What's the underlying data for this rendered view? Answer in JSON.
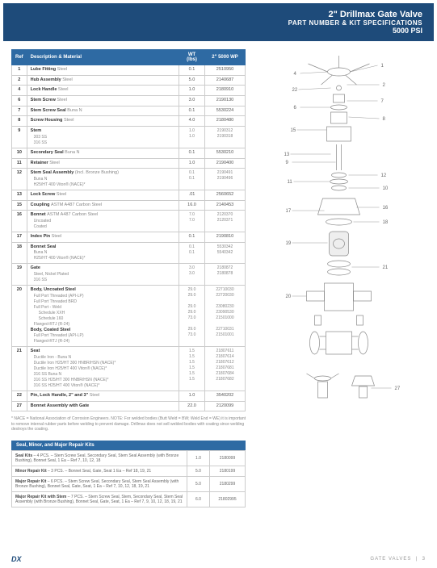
{
  "header": {
    "title": "2\" Drillmax Gate Valve",
    "sub": "PART NUMBER & KIT SPECIFICATIONS",
    "psi": "5000 PSI"
  },
  "columns": {
    "ref": "Ref",
    "desc": "Description & Material",
    "wt": "WT (lbs)",
    "pn": "2\" 5000 WP"
  },
  "rows": [
    {
      "ref": "1",
      "desc": "Lube Fitting",
      "mat": "Steel",
      "wt": "0.1",
      "pn": "2510950"
    },
    {
      "ref": "2",
      "desc": "Hub Assembly",
      "mat": "Steel",
      "wt": "5.0",
      "pn": "2140687"
    },
    {
      "ref": "4",
      "desc": "Lock Handle",
      "mat": "Steel",
      "wt": "1.0",
      "pn": "2180910"
    },
    {
      "ref": "6",
      "desc": "Stem Screw",
      "mat": "Steel",
      "wt": "3.0",
      "pn": "2190130"
    },
    {
      "ref": "7",
      "desc": "Stem Screw Seal",
      "mat": "Buna N",
      "wt": "0.1",
      "pn": "5530224"
    },
    {
      "ref": "8",
      "desc": "Screw Housing",
      "mat": "Steel",
      "wt": "4.0",
      "pn": "2180480"
    },
    {
      "ref": "9",
      "desc": "Stem",
      "mat": "",
      "subs": [
        {
          "t": "303 SS",
          "wt": "1.0",
          "pn": "2190312"
        },
        {
          "t": "316 SS",
          "wt": "1.0",
          "pn": "2190318"
        }
      ]
    },
    {
      "ref": "10",
      "desc": "Secondary Seal",
      "mat": "Buna N",
      "wt": "0.1",
      "pn": "5530210"
    },
    {
      "ref": "11",
      "desc": "Retainer",
      "mat": "Steel",
      "wt": "1.0",
      "pn": "2190400"
    },
    {
      "ref": "12",
      "desc": "Stem Seal Assembly",
      "mat": "(Incl. Bronze Bushing)",
      "subs": [
        {
          "t": "Buna N",
          "wt": "0.1",
          "pn": "2190491"
        },
        {
          "t": "H25/HT 400 Viton® (NACE)*",
          "wt": "0.1",
          "pn": "2190496"
        }
      ]
    },
    {
      "ref": "13",
      "desc": "Lock Screw",
      "mat": "Steel",
      "wt": ".01",
      "pn": "2560652"
    },
    {
      "ref": "15",
      "desc": "Coupling",
      "mat": "ASTM A487 Carbon Steel",
      "wt": "16.0",
      "pn": "2140453"
    },
    {
      "ref": "16",
      "desc": "Bonnet",
      "mat": "ASTM A487 Carbon Steel",
      "subs": [
        {
          "t": "Uncoated",
          "wt": "7.0",
          "pn": "2120370"
        },
        {
          "t": "Coated",
          "wt": "7.0",
          "pn": "2120371"
        }
      ]
    },
    {
      "ref": "17",
      "desc": "Index Pin",
      "mat": "Steel",
      "wt": "0.1",
      "pn": "2190810"
    },
    {
      "ref": "18",
      "desc": "Bonnet Seal",
      "mat": "",
      "subs": [
        {
          "t": "Buna N",
          "wt": "0.1",
          "pn": "5530342"
        },
        {
          "t": "H25/HT 400 Viton® (NACE)*",
          "wt": "0.1",
          "pn": "5540342"
        }
      ]
    },
    {
      "ref": "19",
      "desc": "Gate",
      "mat": "",
      "subs": [
        {
          "t": "Steel, Nickel Plated",
          "wt": "3.0",
          "pn": "2180872"
        },
        {
          "t": "316 SS",
          "wt": "3.0",
          "pn": "2180878"
        }
      ]
    },
    {
      "ref": "20",
      "desc": "Body, Uncoated Steel",
      "mat": "",
      "complex": [
        {
          "t": "Full Port Threaded (API-LP)",
          "wt": "29.0",
          "pn": "22710030",
          "lvl": 1
        },
        {
          "t": "Full Port Threaded BRD",
          "wt": "29.0",
          "pn": "22720030",
          "lvl": 1
        },
        {
          "t": "Full Port - Weld",
          "wt": "",
          "pn": "",
          "lvl": 1
        },
        {
          "t": "Schedule XXH",
          "wt": "29.0",
          "pn": "23080230",
          "lvl": 2
        },
        {
          "t": "Schedule 160",
          "wt": "29.0",
          "pn": "23090530",
          "lvl": 2
        },
        {
          "t": "Flanged-RTJ (R-24)",
          "wt": "73.0",
          "pn": "21501000",
          "lvl": 1
        },
        {
          "t": "Body, Coated Steel",
          "wt": "",
          "pn": "",
          "lvl": 0,
          "bold": true
        },
        {
          "t": "Full Port Threaded (API-LP)",
          "wt": "29.0",
          "pn": "22710031",
          "lvl": 1
        },
        {
          "t": "Flanged-RTJ (R-24)",
          "wt": "73.0",
          "pn": "21501001",
          "lvl": 1
        }
      ]
    },
    {
      "ref": "21",
      "desc": "Seat",
      "mat": "",
      "subs": [
        {
          "t": "Ductile Iron - Buna N",
          "wt": "1.5",
          "pn": "21807611"
        },
        {
          "t": "Ductile Iron H25/HT 300 HNBR/HSN (NACE)*",
          "wt": "1.5",
          "pn": "21807614"
        },
        {
          "t": "Ductile Iron H25/HT 400 Viton® (NACE)*",
          "wt": "1.5",
          "pn": "21807612"
        },
        {
          "t": "316 SS Buna N",
          "wt": "1.5",
          "pn": "21807681"
        },
        {
          "t": "316 SS H25/HT 300 HNBR/HSN (NACE)*",
          "wt": "1.5",
          "pn": "21807684"
        },
        {
          "t": "316 SS H25/HT 400 Viton® (NACE)*",
          "wt": "1.5",
          "pn": "21807682"
        }
      ]
    },
    {
      "ref": "22",
      "desc": "Pin, Lock Handle, 2\" and 3\"",
      "mat": "Steel",
      "wt": "1.0",
      "pn": "3540202"
    },
    {
      "ref": "27",
      "desc": "Bonnet Assembly with Gate",
      "mat": "",
      "wt": "22.0",
      "pn": "2120099"
    }
  ],
  "footnote": "* NACE = National Association of Corrosion Engineers.  NOTE: For welded bodies (Butt Weld = BW; Weld End = WE) it is important to remove internal rubber parts before welding to prevent damage. Drillmax does not sell welded bodies with coating since welding destroys the coating.",
  "kits_header": "Seal, Minor, and Major Repair Kits",
  "kits": [
    {
      "name": "Seal Kits",
      "desc": " – 4 PCS. – Stem Screw Seal, Secondary Seal, Stem Seal Assembly (with Bronze Bushing), Bonnet Seal, 1 Ea – Ref 7, 10, 12, 18",
      "wt": "1.0",
      "pn": "2180099"
    },
    {
      "name": "Minor Repair Kit",
      "desc": " – 3 PCS. – Bonnet Seal, Gate, Seat 1 Ea – Ref 18, 19, 21",
      "wt": "5.0",
      "pn": "2180199"
    },
    {
      "name": "Major Repair Kit",
      "desc": " – 6 PCS. – Stem Screw Seal, Secondary Seal, Stem Seal Assembly (with Bronze Bushing), Bonnet Seal, Gate, Seat, 1 Ea – Ref 7, 10, 12, 18, 19, 21",
      "wt": "5.0",
      "pn": "2180299"
    },
    {
      "name": "Major Repair Kit with Stem",
      "desc": " – 7 PCS. – Stem Screw Seal, Stem, Secondary Seal, Stem Seal Assembly (with Bronze Bushing), Bonnet Seal, Gate, Seat, 1 Ea – Ref 7, 9, 10, 12, 18, 19, 21",
      "wt": "6.0",
      "pn": "21802995"
    }
  ],
  "footer": {
    "brand": "DX",
    "label": "GATE VALVES",
    "page": "3"
  },
  "callouts": [
    "1",
    "4",
    "2",
    "22",
    "7",
    "6",
    "8",
    "15",
    "13",
    "12",
    "11",
    "10",
    "9",
    "16",
    "17",
    "18",
    "19",
    "21",
    "20",
    "27"
  ]
}
